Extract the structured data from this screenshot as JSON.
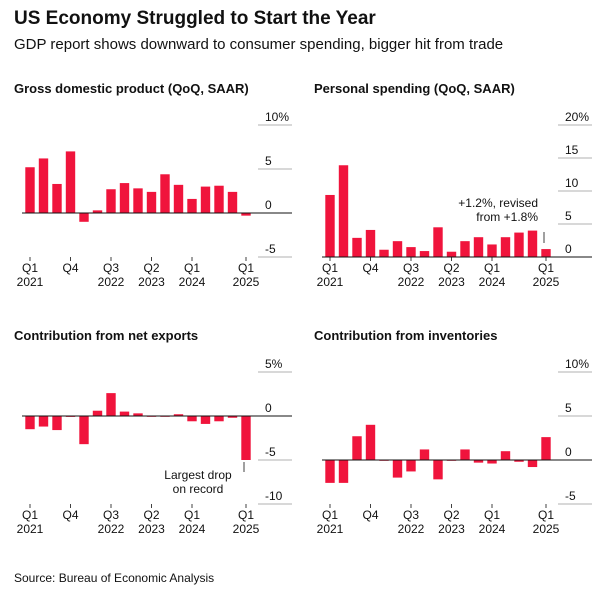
{
  "title": "US Economy Struggled to Start the Year",
  "subtitle": "GDP report shows downward to consumer spending, bigger hit from trade",
  "source": "Source: Bureau of Economic Analysis",
  "chart_data": [
    {
      "type": "bar",
      "title": "Gross domestic product (QoQ, SAAR)",
      "categories": [
        "Q1\n2021",
        null,
        null,
        "Q4",
        null,
        null,
        "Q3\n2022",
        null,
        null,
        "Q2\n2023",
        null,
        null,
        "Q1\n2024",
        null,
        null,
        null,
        "Q1\n2025"
      ],
      "values": [
        5.2,
        6.2,
        3.3,
        7.0,
        -1.0,
        0.3,
        2.7,
        3.4,
        2.8,
        2.4,
        4.4,
        3.2,
        1.6,
        3.0,
        3.1,
        2.4,
        -0.3
      ],
      "color": "#f0143c",
      "ylim": [
        -5,
        10
      ],
      "yticks": [
        -5,
        0,
        5,
        {
          "value": 10,
          "label": "10%"
        }
      ]
    },
    {
      "type": "bar",
      "title": "Personal spending (QoQ, SAAR)",
      "categories": [
        "Q1\n2021",
        null,
        null,
        "Q4",
        null,
        null,
        "Q3\n2022",
        null,
        null,
        "Q2\n2023",
        null,
        null,
        "Q1\n2024",
        null,
        null,
        null,
        "Q1\n2025"
      ],
      "values": [
        9.4,
        13.9,
        2.9,
        4.1,
        1.1,
        2.4,
        1.5,
        0.9,
        4.5,
        0.8,
        2.4,
        3.0,
        1.9,
        3.0,
        3.7,
        4.0,
        1.2
      ],
      "color": "#f0143c",
      "ylim": [
        0,
        20
      ],
      "yticks": [
        0,
        5,
        10,
        15,
        {
          "value": 20,
          "label": "20%"
        }
      ],
      "annotation": "+1.2%, revised\nfrom +1.8%"
    },
    {
      "type": "bar",
      "title": "Contribution from net exports",
      "categories": [
        "Q1\n2021",
        null,
        null,
        "Q4",
        null,
        null,
        "Q3\n2022",
        null,
        null,
        "Q2\n2023",
        null,
        null,
        "Q1\n2024",
        null,
        null,
        null,
        "Q1\n2025"
      ],
      "values": [
        -1.5,
        -1.2,
        -1.6,
        -0.1,
        -3.2,
        0.6,
        2.6,
        0.5,
        0.3,
        0.0,
        0.0,
        0.2,
        -0.6,
        -0.9,
        -0.6,
        -0.2,
        -5.0
      ],
      "color": "#f0143c",
      "ylim": [
        -10,
        5
      ],
      "yticks": [
        -10,
        -5,
        0,
        {
          "value": 5,
          "label": "5%"
        }
      ],
      "annotation": "Largest drop\non record"
    },
    {
      "type": "bar",
      "title": "Contribution from inventories",
      "categories": [
        "Q1\n2021",
        null,
        null,
        "Q4",
        null,
        null,
        "Q3\n2022",
        null,
        null,
        "Q2\n2023",
        null,
        null,
        "Q1\n2024",
        null,
        null,
        null,
        "Q1\n2025"
      ],
      "values": [
        -2.6,
        -2.6,
        2.7,
        4.0,
        0.0,
        -2.0,
        -1.3,
        1.2,
        -2.2,
        0.0,
        1.2,
        -0.3,
        -0.4,
        1.0,
        -0.2,
        -0.8,
        2.6
      ],
      "color": "#f0143c",
      "ylim": [
        -5,
        10
      ],
      "yticks": [
        -5,
        0,
        5,
        {
          "value": 10,
          "label": "10%"
        }
      ]
    }
  ]
}
